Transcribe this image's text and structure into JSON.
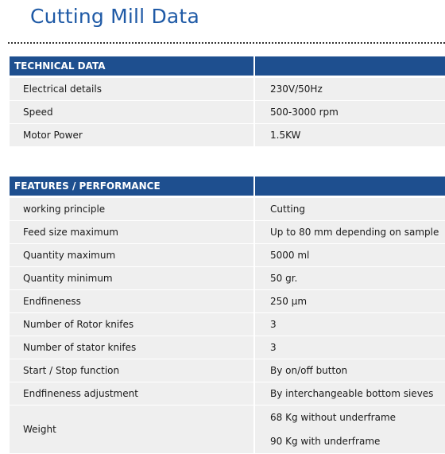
{
  "title": "Cutting Mill Data",
  "technical": {
    "header": "TECHNICAL DATA",
    "rows": [
      {
        "label": "Electrical details",
        "value": "230V/50Hz"
      },
      {
        "label": "Speed",
        "value": "500-3000 rpm"
      },
      {
        "label": "Motor Power",
        "value": "1.5KW"
      }
    ]
  },
  "features": {
    "header": "FEATURES / PERFORMANCE",
    "rows": [
      {
        "label": "working principle",
        "value": "Cutting"
      },
      {
        "label": "Feed size maximum",
        "value": "Up to 80 mm depending on sample"
      },
      {
        "label": "Quantity maximum",
        "value": "5000 ml"
      },
      {
        "label": "Quantity minimum",
        "value": "50 gr."
      },
      {
        "label": "Endfineness",
        "value": "250 µm"
      },
      {
        "label": "Number of Rotor knifes",
        "value": "3"
      },
      {
        "label": "Number of stator knifes",
        "value": "3"
      },
      {
        "label": "Start / Stop function",
        "value": "By on/off button"
      },
      {
        "label": "Endfineness adjustment",
        "value": "By interchangeable bottom sieves"
      }
    ],
    "weight": {
      "label": "Weight",
      "values": [
        "68 Kg without underframe",
        "90 Kg with underframe"
      ]
    }
  }
}
